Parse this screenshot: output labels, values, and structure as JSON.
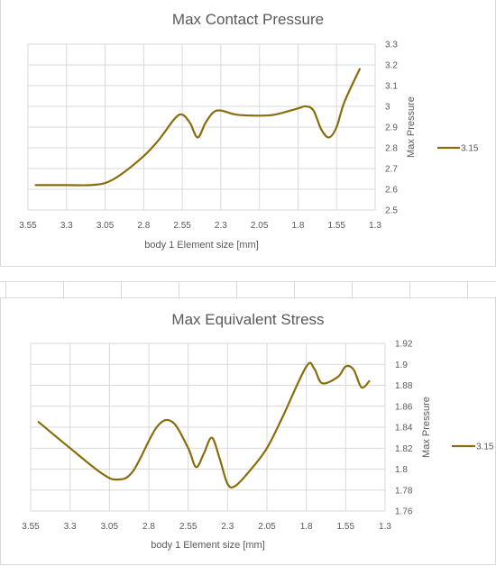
{
  "chart_data": [
    {
      "type": "line",
      "title": "Max Contact Pressure",
      "xlabel": "body 1 Element size [mm]",
      "ylabel": "Max Pressure",
      "x_ticks": [
        "3.55",
        "3.3",
        "3.05",
        "2.8",
        "2.55",
        "2.3",
        "2.05",
        "1.8",
        "1.55",
        "1.3"
      ],
      "y_ticks": [
        "3.3",
        "3.2",
        "3.1",
        "3",
        "2.9",
        "2.8",
        "2.7",
        "2.6",
        "2.5"
      ],
      "xlim": [
        3.55,
        1.3
      ],
      "ylim": [
        2.5,
        3.3
      ],
      "x_reversed": true,
      "y_axis_side": "right",
      "grid": true,
      "legend_position": "right",
      "series": [
        {
          "name": "3.15",
          "color": "#8a6d0b",
          "x": [
            3.5,
            3.3,
            3.15,
            3.05,
            2.95,
            2.8,
            2.7,
            2.6,
            2.55,
            2.5,
            2.45,
            2.4,
            2.35,
            2.3,
            2.2,
            2.05,
            1.95,
            1.8,
            1.75,
            1.7,
            1.65,
            1.6,
            1.55,
            1.5,
            1.4
          ],
          "values": [
            2.62,
            2.62,
            2.62,
            2.63,
            2.67,
            2.76,
            2.84,
            2.94,
            2.96,
            2.92,
            2.85,
            2.92,
            2.97,
            2.98,
            2.96,
            2.955,
            2.96,
            2.99,
            3.0,
            2.98,
            2.89,
            2.85,
            2.9,
            3.02,
            3.18
          ]
        }
      ]
    },
    {
      "type": "line",
      "title": "Max Equivalent Stress",
      "xlabel": "body 1 Element size [mm]",
      "ylabel": "Max Pressure",
      "x_ticks": [
        "3.55",
        "3.3",
        "3.05",
        "2.8",
        "2.55",
        "2.3",
        "2.05",
        "1.8",
        "1.55",
        "1.3"
      ],
      "y_ticks": [
        "1.92",
        "1.9",
        "1.88",
        "1.86",
        "1.84",
        "1.82",
        "1.8",
        "1.78",
        "1.76"
      ],
      "xlim": [
        3.55,
        1.3
      ],
      "ylim": [
        1.76,
        1.92
      ],
      "x_reversed": true,
      "y_axis_side": "right",
      "grid": true,
      "legend_position": "right",
      "series": [
        {
          "name": "3.15",
          "color": "#8a6d0b",
          "x": [
            3.5,
            3.3,
            3.1,
            3.0,
            2.9,
            2.75,
            2.65,
            2.55,
            2.5,
            2.45,
            2.4,
            2.35,
            2.3,
            2.25,
            2.15,
            2.05,
            1.95,
            1.8,
            1.75,
            1.7,
            1.6,
            1.55,
            1.5,
            1.45,
            1.4
          ],
          "values": [
            1.845,
            1.82,
            1.796,
            1.79,
            1.798,
            1.84,
            1.845,
            1.82,
            1.802,
            1.815,
            1.83,
            1.81,
            1.786,
            1.784,
            1.8,
            1.82,
            1.85,
            1.898,
            1.896,
            1.882,
            1.888,
            1.898,
            1.895,
            1.878,
            1.884
          ]
        }
      ]
    }
  ]
}
